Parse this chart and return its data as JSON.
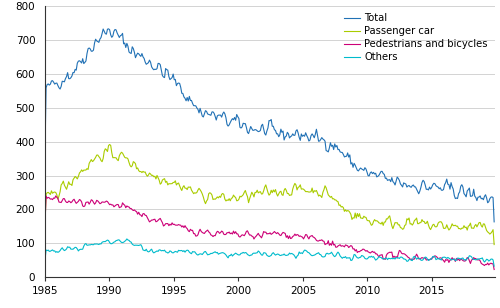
{
  "title": "",
  "legend_entries": [
    "Total",
    "Passenger car",
    "Pedestrians and bicycles",
    "Others"
  ],
  "colors": {
    "Total": "#2171b5",
    "Passenger car": "#aacc00",
    "Pedestrians and bicycles": "#cc0077",
    "Others": "#00bbcc"
  },
  "ylim": [
    0,
    800
  ],
  "yticks": [
    0,
    100,
    200,
    300,
    400,
    500,
    600,
    700,
    800
  ],
  "xticks": [
    1985,
    1990,
    1995,
    2000,
    2005,
    2010,
    2015
  ],
  "xlim_start": 1985,
  "xlim_end": 2019.9,
  "linewidth": 0.8
}
